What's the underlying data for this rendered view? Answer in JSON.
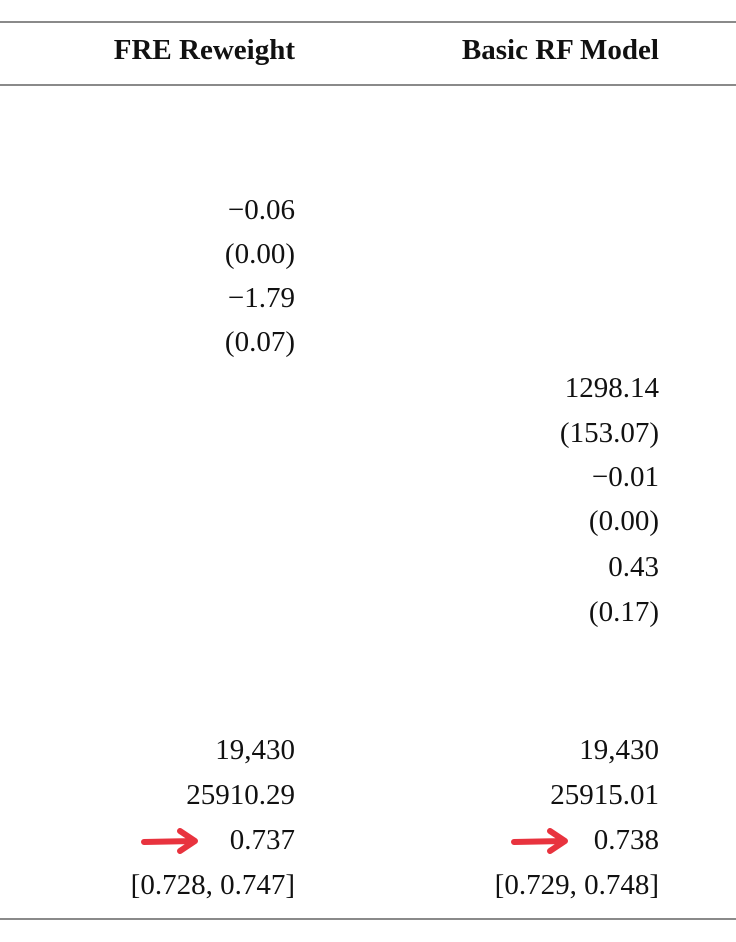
{
  "columns": {
    "a": "FRE Reweight",
    "b": "Basic RF Model"
  },
  "col_a": {
    "coef1": "−0.06",
    "se1": "(0.00)",
    "coef2": "−1.79",
    "se2": "(0.07)",
    "n": "19,430",
    "stat": "25910.29",
    "auc": "0.737",
    "ci": "[0.728, 0.747]"
  },
  "col_b": {
    "coef1": "1298.14",
    "se1": "(153.07)",
    "coef2": "−0.01",
    "se2": "(0.00)",
    "coef3": "0.43",
    "se3": "(0.17)",
    "n": "19,430",
    "stat": "25915.01",
    "auc": "0.738",
    "ci": "[0.729, 0.748]"
  },
  "annotations": {
    "arrow_color": "#e8333e",
    "arrow_icon": "right-arrow-icon"
  }
}
